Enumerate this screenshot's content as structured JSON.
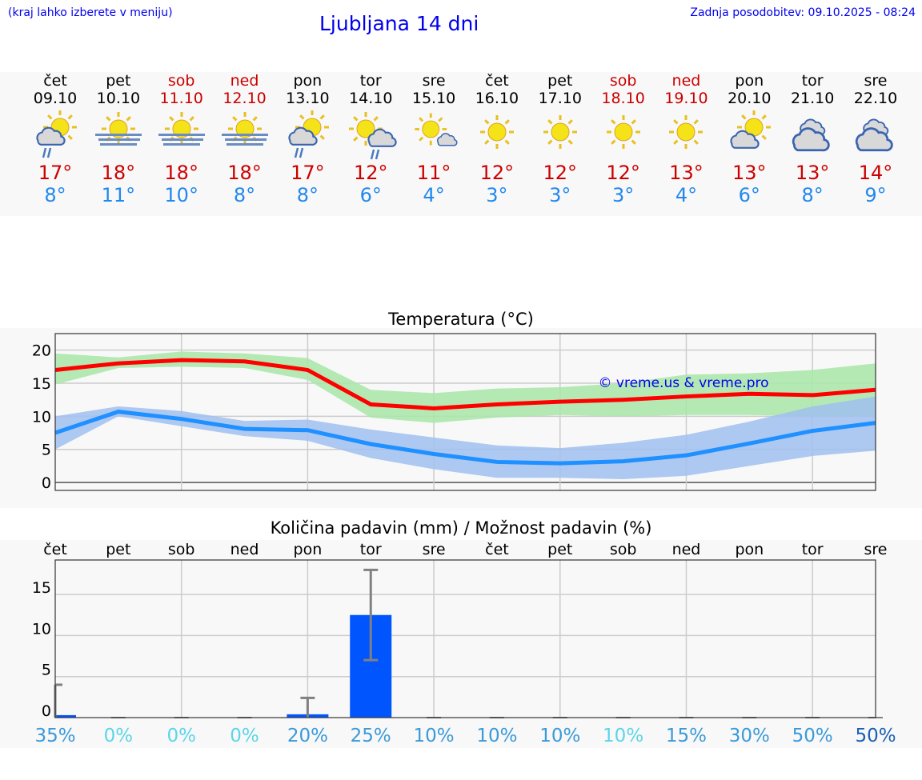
{
  "header": {
    "note": "(kraj lahko izberete v meniju)",
    "title": "Ljubljana 14 dni",
    "updated": "Zadnja posodobitev: 09.10.2025 - 08:24"
  },
  "days": [
    {
      "name": "čet",
      "date": "09.10",
      "weekend": false,
      "icon": "partly-cloudy-rain-icon",
      "max": "17°",
      "min": "8°"
    },
    {
      "name": "pet",
      "date": "10.10",
      "weekend": false,
      "icon": "sun-fog-icon",
      "max": "18°",
      "min": "11°"
    },
    {
      "name": "sob",
      "date": "11.10",
      "weekend": true,
      "icon": "sun-fog-icon",
      "max": "18°",
      "min": "10°"
    },
    {
      "name": "ned",
      "date": "12.10",
      "weekend": true,
      "icon": "sun-fog-icon",
      "max": "18°",
      "min": "8°"
    },
    {
      "name": "pon",
      "date": "13.10",
      "weekend": false,
      "icon": "partly-cloudy-rain-icon",
      "max": "17°",
      "min": "8°"
    },
    {
      "name": "tor",
      "date": "14.10",
      "weekend": false,
      "icon": "sun-cloud-rain-icon",
      "max": "12°",
      "min": "6°"
    },
    {
      "name": "sre",
      "date": "15.10",
      "weekend": false,
      "icon": "sun-small-cloud-icon",
      "max": "11°",
      "min": "4°"
    },
    {
      "name": "čet",
      "date": "16.10",
      "weekend": false,
      "icon": "sun-icon",
      "max": "12°",
      "min": "3°"
    },
    {
      "name": "pet",
      "date": "17.10",
      "weekend": false,
      "icon": "sun-icon",
      "max": "12°",
      "min": "3°"
    },
    {
      "name": "sob",
      "date": "18.10",
      "weekend": true,
      "icon": "sun-icon",
      "max": "12°",
      "min": "3°"
    },
    {
      "name": "ned",
      "date": "19.10",
      "weekend": true,
      "icon": "sun-icon",
      "max": "13°",
      "min": "4°"
    },
    {
      "name": "pon",
      "date": "20.10",
      "weekend": false,
      "icon": "partly-cloudy-icon",
      "max": "13°",
      "min": "6°"
    },
    {
      "name": "tor",
      "date": "21.10",
      "weekend": false,
      "icon": "overcast-icon",
      "max": "13°",
      "min": "8°"
    },
    {
      "name": "sre",
      "date": "22.10",
      "weekend": false,
      "icon": "overcast-icon",
      "max": "14°",
      "min": "9°"
    }
  ],
  "chart_data": [
    {
      "type": "line",
      "title": "Temperatura (°C)",
      "ylim": [
        -1.2,
        22.5
      ],
      "yticks": [
        "0",
        "5",
        "10",
        "15",
        "20"
      ],
      "grid": true,
      "watermark": "© vreme.us & vreme.pro",
      "series": [
        {
          "values": [
            17,
            18,
            18.5,
            18.3,
            17,
            11.8,
            11.2,
            11.8,
            12.2,
            12.5,
            13,
            13.4,
            13.2,
            14
          ],
          "color": "#ff0000",
          "band_low": [
            14.8,
            17.3,
            17.5,
            17.3,
            15.5,
            9.8,
            9,
            9.8,
            10.2,
            10,
            10.2,
            10.2,
            10,
            10
          ],
          "band_high": [
            19.5,
            18.9,
            19.8,
            19.5,
            18.8,
            14,
            13.5,
            14.2,
            14.4,
            15,
            16.3,
            16.5,
            17,
            18
          ],
          "band_color": "#a8e6a8"
        },
        {
          "values": [
            7.5,
            10.7,
            9.6,
            8.1,
            7.9,
            5.8,
            4.3,
            3.1,
            2.9,
            3.2,
            4.1,
            5.9,
            7.8,
            9
          ],
          "color": "#1e90ff",
          "band_low": [
            5,
            10,
            8.5,
            7,
            6.3,
            3.7,
            2,
            0.7,
            0.7,
            0.5,
            1,
            2.5,
            4,
            4.8
          ],
          "band_high": [
            10,
            11.5,
            10.8,
            9.3,
            9.5,
            8,
            6.8,
            5.6,
            5.2,
            6,
            7.2,
            9.2,
            11.5,
            13
          ],
          "band_color": "#a0bff0"
        }
      ]
    },
    {
      "type": "bar",
      "title": "Količina padavin (mm) / Možnost padavin (%)",
      "ylim": [
        0,
        19.2
      ],
      "yticks": [
        "0",
        "5",
        "10",
        "15"
      ],
      "grid": true,
      "categories": [
        "čet",
        "pet",
        "sob",
        "ned",
        "pon",
        "tor",
        "sre",
        "čet",
        "pet",
        "sob",
        "ned",
        "pon",
        "tor",
        "sre"
      ],
      "values": [
        0.3,
        0,
        0,
        0,
        0.4,
        12.5,
        0,
        0,
        0,
        0,
        0,
        0,
        0,
        0
      ],
      "err_low": [
        0,
        0,
        0,
        0,
        0,
        7,
        0,
        0,
        0,
        0,
        0,
        0,
        0,
        0
      ],
      "err_high": [
        4,
        0,
        0,
        0,
        2.4,
        18,
        0,
        0,
        0,
        0,
        0,
        0,
        0,
        0
      ],
      "probability": [
        "35%",
        "0%",
        "0%",
        "0%",
        "20%",
        "25%",
        "10%",
        "10%",
        "10%",
        "10%",
        "15%",
        "30%",
        "50%",
        "50%"
      ],
      "probability_colors": [
        "#3a9ad9",
        "#5bd5e8",
        "#5bd5e8",
        "#5bd5e8",
        "#3a9ad9",
        "#3a9ad9",
        "#3a9ad9",
        "#3a9ad9",
        "#3a9ad9",
        "#5bd5e8",
        "#3a9ad9",
        "#3a9ad9",
        "#3a9ad9",
        "#1a5fb4"
      ],
      "bar_color": "#0055ff"
    }
  ]
}
